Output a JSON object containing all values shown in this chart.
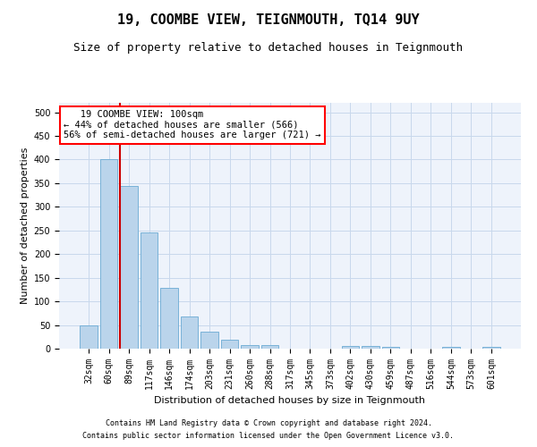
{
  "title": "19, COOMBE VIEW, TEIGNMOUTH, TQ14 9UY",
  "subtitle": "Size of property relative to detached houses in Teignmouth",
  "xlabel": "Distribution of detached houses by size in Teignmouth",
  "ylabel": "Number of detached properties",
  "footnote1": "Contains HM Land Registry data © Crown copyright and database right 2024.",
  "footnote2": "Contains public sector information licensed under the Open Government Licence v3.0.",
  "annotation_line1": "   19 COOMBE VIEW: 100sqm",
  "annotation_line2": "← 44% of detached houses are smaller (566)",
  "annotation_line3": "56% of semi-detached houses are larger (721) →",
  "bar_color": "#bad4eb",
  "bar_edge_color": "#6aaad4",
  "vline_color": "#cc0000",
  "vline_x_idx": 2,
  "categories": [
    "32sqm",
    "60sqm",
    "89sqm",
    "117sqm",
    "146sqm",
    "174sqm",
    "203sqm",
    "231sqm",
    "260sqm",
    "288sqm",
    "317sqm",
    "345sqm",
    "373sqm",
    "402sqm",
    "430sqm",
    "459sqm",
    "487sqm",
    "516sqm",
    "544sqm",
    "573sqm",
    "601sqm"
  ],
  "values": [
    50,
    400,
    345,
    245,
    128,
    68,
    35,
    18,
    8,
    8,
    0,
    0,
    0,
    5,
    5,
    3,
    0,
    0,
    3,
    0,
    3
  ],
  "ylim": [
    0,
    520
  ],
  "yticks": [
    0,
    50,
    100,
    150,
    200,
    250,
    300,
    350,
    400,
    450,
    500
  ],
  "grid_color": "#c8d8ec",
  "background_color": "#eef3fb",
  "title_fontsize": 11,
  "subtitle_fontsize": 9,
  "axis_fontsize": 8,
  "tick_fontsize": 7,
  "annot_fontsize": 7.5,
  "footnote_fontsize": 6
}
